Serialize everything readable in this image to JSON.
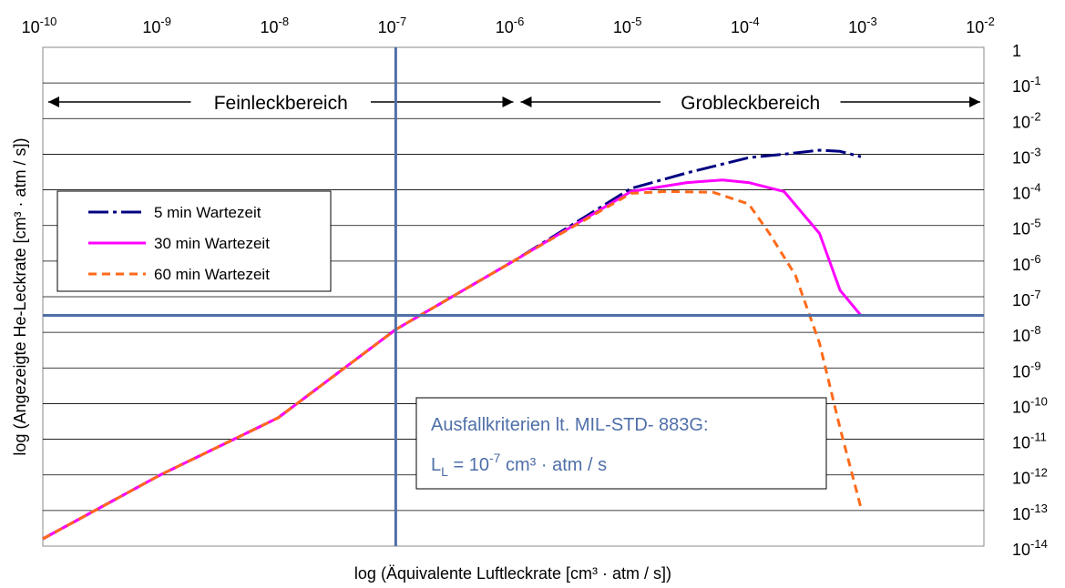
{
  "chart_data": {
    "type": "line",
    "xlabel": "log (Äquivalente Luftleckrate [cm³ · atm / s])",
    "ylabel": "log (Angezeigte He-Leckrate [cm³ · atm / s])",
    "x_scale": "log",
    "y_scale": "log",
    "xlim": [
      1e-10,
      0.01
    ],
    "ylim": [
      1e-14,
      1
    ],
    "x_ticks": [
      {
        "base": "10",
        "exp": "-10"
      },
      {
        "base": "10",
        "exp": "-9"
      },
      {
        "base": "10",
        "exp": "-8"
      },
      {
        "base": "10",
        "exp": "-7"
      },
      {
        "base": "10",
        "exp": "-6"
      },
      {
        "base": "10",
        "exp": "-5"
      },
      {
        "base": "10",
        "exp": "-4"
      },
      {
        "base": "10",
        "exp": "-3"
      },
      {
        "base": "10",
        "exp": "-2"
      }
    ],
    "y_ticks": [
      {
        "base": "1",
        "exp": ""
      },
      {
        "base": "10",
        "exp": "-1"
      },
      {
        "base": "10",
        "exp": "-2"
      },
      {
        "base": "10",
        "exp": "-3"
      },
      {
        "base": "10",
        "exp": "-4"
      },
      {
        "base": "10",
        "exp": "-5"
      },
      {
        "base": "10",
        "exp": "-6"
      },
      {
        "base": "10",
        "exp": "-7"
      },
      {
        "base": "10",
        "exp": "-8"
      },
      {
        "base": "10",
        "exp": "-9"
      },
      {
        "base": "10",
        "exp": "-10"
      },
      {
        "base": "10",
        "exp": "-11"
      },
      {
        "base": "10",
        "exp": "-12"
      },
      {
        "base": "10",
        "exp": "-13"
      },
      {
        "base": "10",
        "exp": "-14"
      }
    ],
    "grid": "horizontal",
    "legend_position": "left",
    "regions": [
      {
        "label": "Feinleckbereich",
        "x_from": 1e-10,
        "x_to": 1e-06
      },
      {
        "label": "Grobleckbereich",
        "x_from": 1e-06,
        "x_to": 0.01
      }
    ],
    "reference_lines": {
      "vertical_x": 1e-07,
      "horizontal_y": 3e-08
    },
    "annotation": {
      "line1": "Ausfallkriterien lt. MIL-STD- 883G:",
      "l_base": "L",
      "l_sub": "L",
      "eq_pre": " = 10",
      "eq_exp": "-7",
      "eq_post": " cm³ · atm / s"
    },
    "series": [
      {
        "name": "5 min Wartezeit",
        "color": "#000080",
        "dash": "long-dash-dot",
        "points": [
          [
            1e-10,
            1.6e-14
          ],
          [
            1e-09,
            1e-12
          ],
          [
            1e-08,
            4e-11
          ],
          [
            1e-07,
            1.2e-08
          ],
          [
            1e-06,
            1e-06
          ],
          [
            1e-05,
            0.00011
          ],
          [
            3e-05,
            0.0003
          ],
          [
            0.0001,
            0.0008
          ],
          [
            0.0002,
            0.001
          ],
          [
            0.0004,
            0.0013
          ],
          [
            0.0006,
            0.0012
          ],
          [
            0.0009,
            0.00085
          ]
        ]
      },
      {
        "name": "30 min Wartezeit",
        "color": "#ff00ff",
        "dash": "solid",
        "points": [
          [
            1e-10,
            1.6e-14
          ],
          [
            1e-09,
            1e-12
          ],
          [
            1e-08,
            4e-11
          ],
          [
            1e-07,
            1.2e-08
          ],
          [
            1e-06,
            1e-06
          ],
          [
            1e-05,
            9e-05
          ],
          [
            3e-05,
            0.00016
          ],
          [
            6e-05,
            0.00019
          ],
          [
            0.0001,
            0.00016
          ],
          [
            0.0002,
            9e-05
          ],
          [
            0.0004,
            6e-06
          ],
          [
            0.0006,
            1.5e-07
          ],
          [
            0.0009,
            3e-08
          ]
        ]
      },
      {
        "name": "60 min Wartezeit",
        "color": "#ff6a1a",
        "dash": "short-dash",
        "points": [
          [
            1e-10,
            1.6e-14
          ],
          [
            1e-09,
            1e-12
          ],
          [
            1e-08,
            4e-11
          ],
          [
            1e-07,
            1.2e-08
          ],
          [
            1e-06,
            1e-06
          ],
          [
            1e-05,
            8e-05
          ],
          [
            2e-05,
            9e-05
          ],
          [
            5e-05,
            8.5e-05
          ],
          [
            0.0001,
            4e-05
          ],
          [
            0.00015,
            6e-06
          ],
          [
            0.00025,
            4e-07
          ],
          [
            0.0004,
            5e-09
          ],
          [
            0.0006,
            2e-11
          ],
          [
            0.0009,
            1.2e-13
          ]
        ]
      }
    ]
  }
}
